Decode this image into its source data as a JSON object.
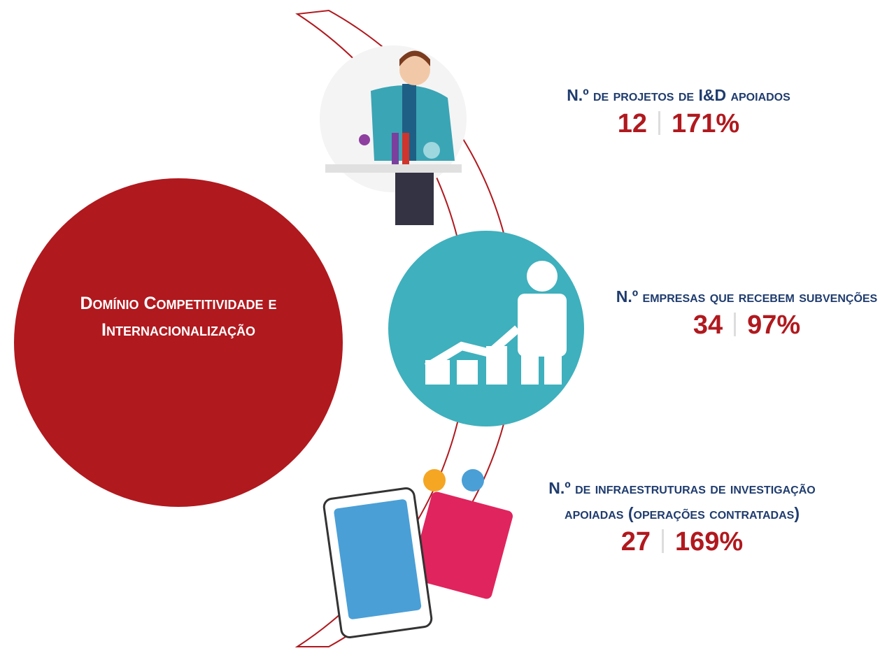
{
  "center": {
    "title": "Domínio Competitividade e Internacionalização"
  },
  "indicators": [
    {
      "label": "N.º de projetos de I&D apoiados",
      "value": "12",
      "percent": "171%"
    },
    {
      "label": "N.º empresas que recebem subvenções",
      "value": "34",
      "percent": "97%"
    },
    {
      "label": "N.º de infraestruturas de investigação apoiadas (operações contratadas)",
      "value": "27",
      "percent": "169%"
    }
  ]
}
